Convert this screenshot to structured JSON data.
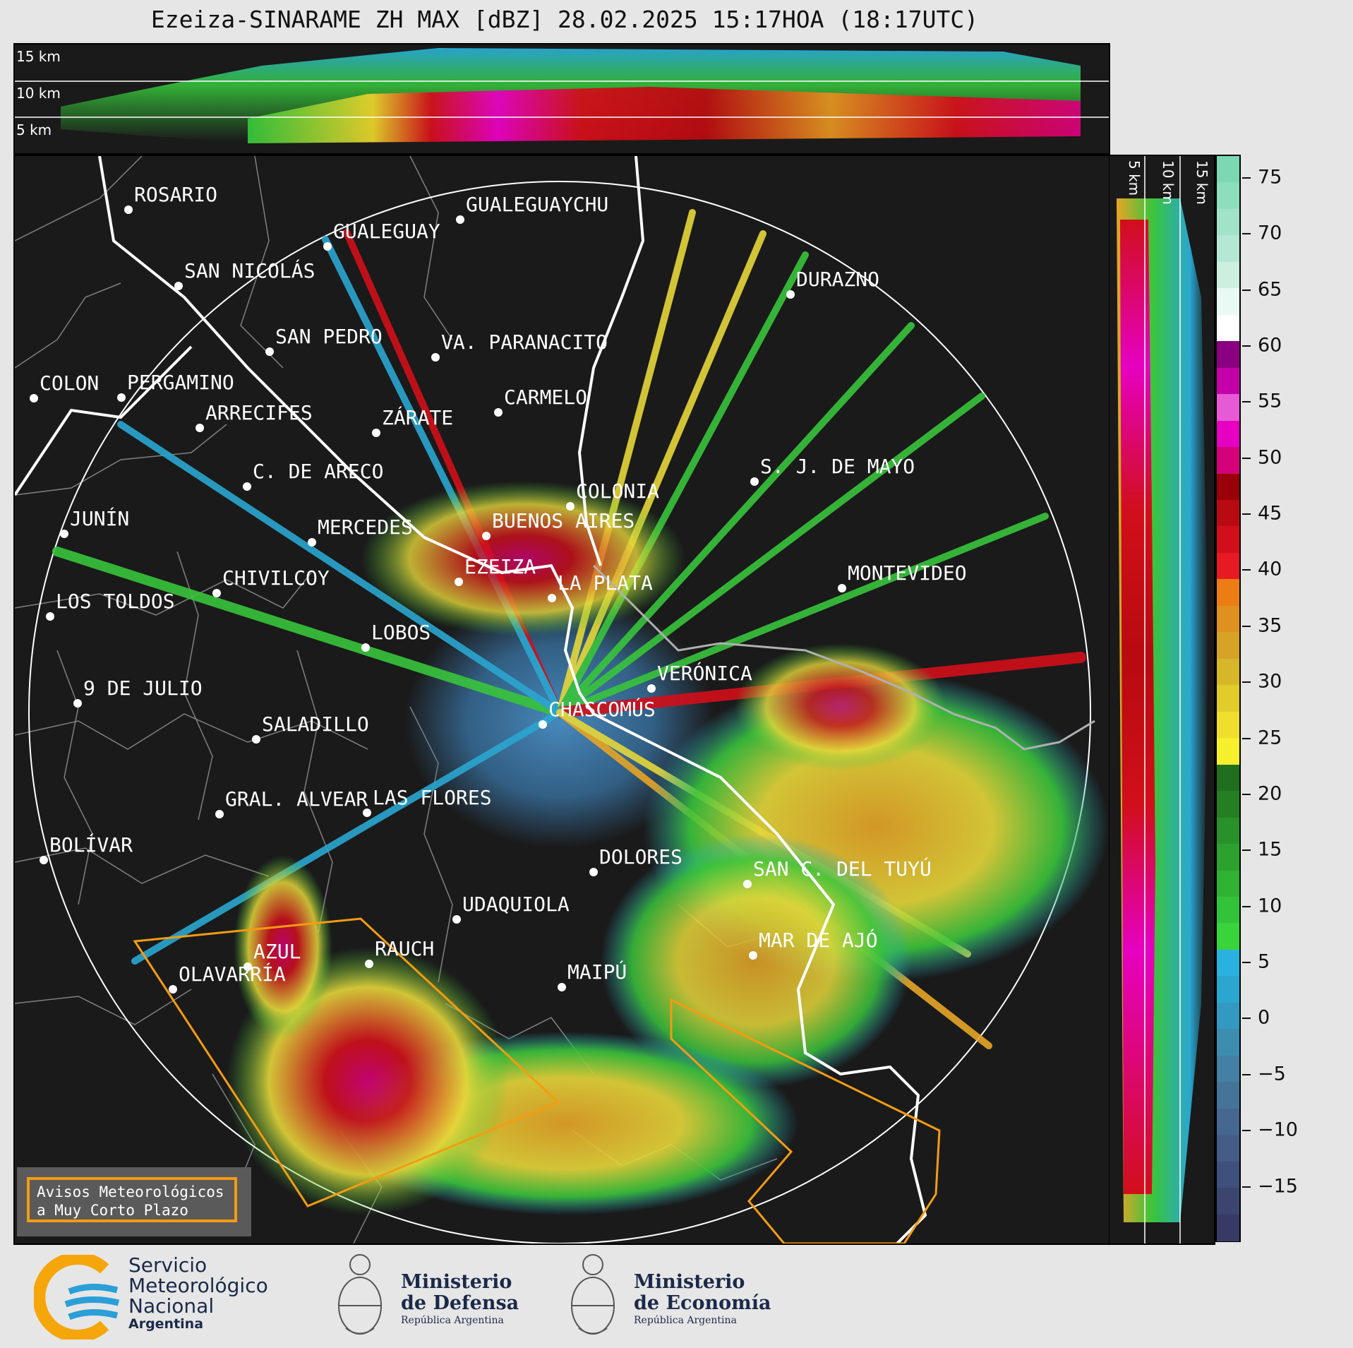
{
  "title": "Ezeiza-SINARAME ZH MAX [dBZ] 28.02.2025 15:17HOA (18:17UTC)",
  "top_panel": {
    "height_labels": [
      "15 km",
      "10 km",
      "5 km"
    ]
  },
  "side_panel": {
    "height_labels": [
      "5 km",
      "10 km",
      "15 km"
    ]
  },
  "colorbar": {
    "ticks": [
      "75",
      "70",
      "65",
      "60",
      "55",
      "50",
      "45",
      "40",
      "35",
      "30",
      "25",
      "20",
      "15",
      "10",
      "5",
      "0",
      "−5",
      "−10",
      "−15"
    ],
    "colors": [
      "#373a65",
      "#3b4570",
      "#40507c",
      "#445c86",
      "#466890",
      "#467499",
      "#4480a4",
      "#3d8db0",
      "#3399c0",
      "#2aa6d0",
      "#29b2e0",
      "#39d43c",
      "#33c33a",
      "#30b233",
      "#2ca12e",
      "#299129",
      "#247f22",
      "#1f6f1e",
      "#f6ef2e",
      "#efde2e",
      "#e2cc2a",
      "#d6b72a",
      "#d5a325",
      "#df9020",
      "#eb7d14",
      "#e61a22",
      "#d10f1a",
      "#b80a10",
      "#9a0008",
      "#d4007a",
      "#e600c2",
      "#e65ad6",
      "#c400aa",
      "#8a0080",
      "#ffffff",
      "#e9f9f3",
      "#ccefdf",
      "#b5e8d4",
      "#a0e3c8",
      "#8ddebd",
      "#7bd8b2"
    ],
    "min": -20,
    "max": 77
  },
  "cities": [
    {
      "name": "ROSARIO"
    },
    {
      "name": "GUALEGUAYCHU"
    },
    {
      "name": "GUALEGUAY"
    },
    {
      "name": "SAN NICOLÁS"
    },
    {
      "name": "DURAZNO"
    },
    {
      "name": "SAN PEDRO"
    },
    {
      "name": "VA. PARANACITO"
    },
    {
      "name": "COLON"
    },
    {
      "name": "PERGAMINO"
    },
    {
      "name": "CARMELO"
    },
    {
      "name": "ARRECIFES"
    },
    {
      "name": "ZÁRATE"
    },
    {
      "name": "S. J. DE MAYO"
    },
    {
      "name": "C. DE ARECO"
    },
    {
      "name": "COLONIA"
    },
    {
      "name": "JUNÍN"
    },
    {
      "name": "BUENOS AIRES"
    },
    {
      "name": "MERCEDES"
    },
    {
      "name": "EZEIZA"
    },
    {
      "name": "MONTEVIDEO"
    },
    {
      "name": "CHIVILCOY"
    },
    {
      "name": "LA PLATA"
    },
    {
      "name": "LOS TOLDOS"
    },
    {
      "name": "LOBOS"
    },
    {
      "name": "VERÓNICA"
    },
    {
      "name": "9 DE JULIO"
    },
    {
      "name": "CHASCOMÚS"
    },
    {
      "name": "SALADILLO"
    },
    {
      "name": "GRAL. ALVEAR"
    },
    {
      "name": "LAS FLORES"
    },
    {
      "name": "BOLÍVAR"
    },
    {
      "name": "DOLORES"
    },
    {
      "name": "SAN C. DEL TUYÚ"
    },
    {
      "name": "UDAQUIOLA"
    },
    {
      "name": "MAR DE AJÓ"
    },
    {
      "name": "AZUL"
    },
    {
      "name": "RAUCH"
    },
    {
      "name": "OLAVARRÍA"
    },
    {
      "name": "MAIPÚ"
    }
  ],
  "alert_box": {
    "line1": "Avisos Meteorológicos",
    "line2": "a Muy Corto Plazo"
  },
  "footer": {
    "smn": {
      "line1": "Servicio",
      "line2": "Meteorológico",
      "line3": "Nacional",
      "line4": "Argentina"
    },
    "defensa": {
      "line1": "Ministerio",
      "line2": "de Defensa",
      "line3": "República Argentina"
    },
    "economia": {
      "line1": "Ministerio",
      "line2": "de Economía",
      "line3": "República Argentina"
    }
  }
}
